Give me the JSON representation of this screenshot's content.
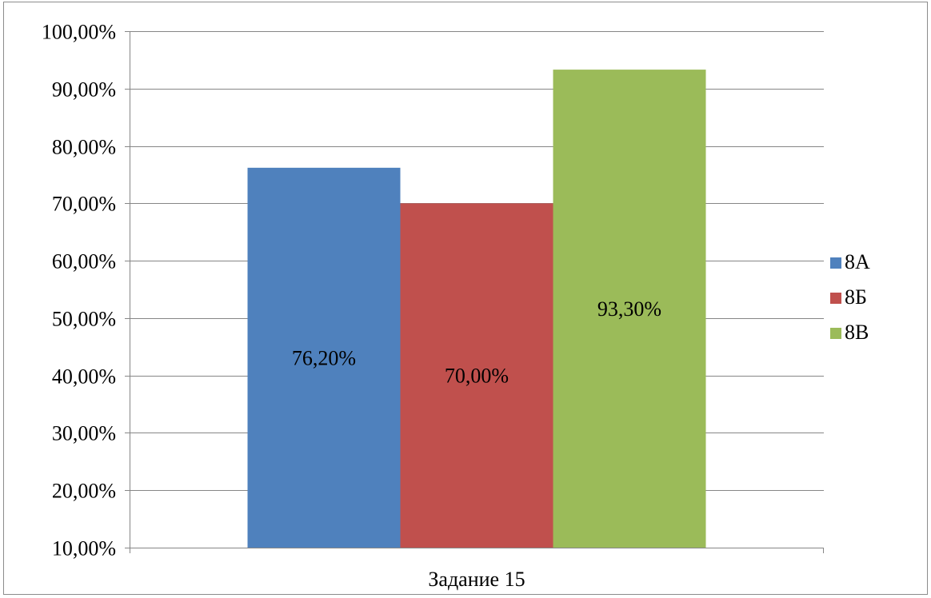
{
  "chart_data": {
    "type": "bar",
    "categories": [
      "Задание 15"
    ],
    "series": [
      {
        "name": "8А",
        "values": [
          76.2
        ],
        "color": "#4f81bd",
        "label": "76,20%"
      },
      {
        "name": "8Б",
        "values": [
          70.0
        ],
        "color": "#c0504d",
        "label": "70,00%"
      },
      {
        "name": "8В",
        "values": [
          93.3
        ],
        "color": "#9bbb59",
        "label": "93,30%"
      }
    ],
    "ylim": [
      10,
      100
    ],
    "yticks": [
      10,
      20,
      30,
      40,
      50,
      60,
      70,
      80,
      90,
      100
    ],
    "ytick_labels": [
      "10,00%",
      "20,00%",
      "30,00%",
      "40,00%",
      "50,00%",
      "60,00%",
      "70,00%",
      "80,00%",
      "90,00%",
      "100,00%"
    ],
    "grid": true,
    "legend": "right",
    "gridline_color": "#868686",
    "title": "",
    "xlabel": "",
    "ylabel": ""
  }
}
